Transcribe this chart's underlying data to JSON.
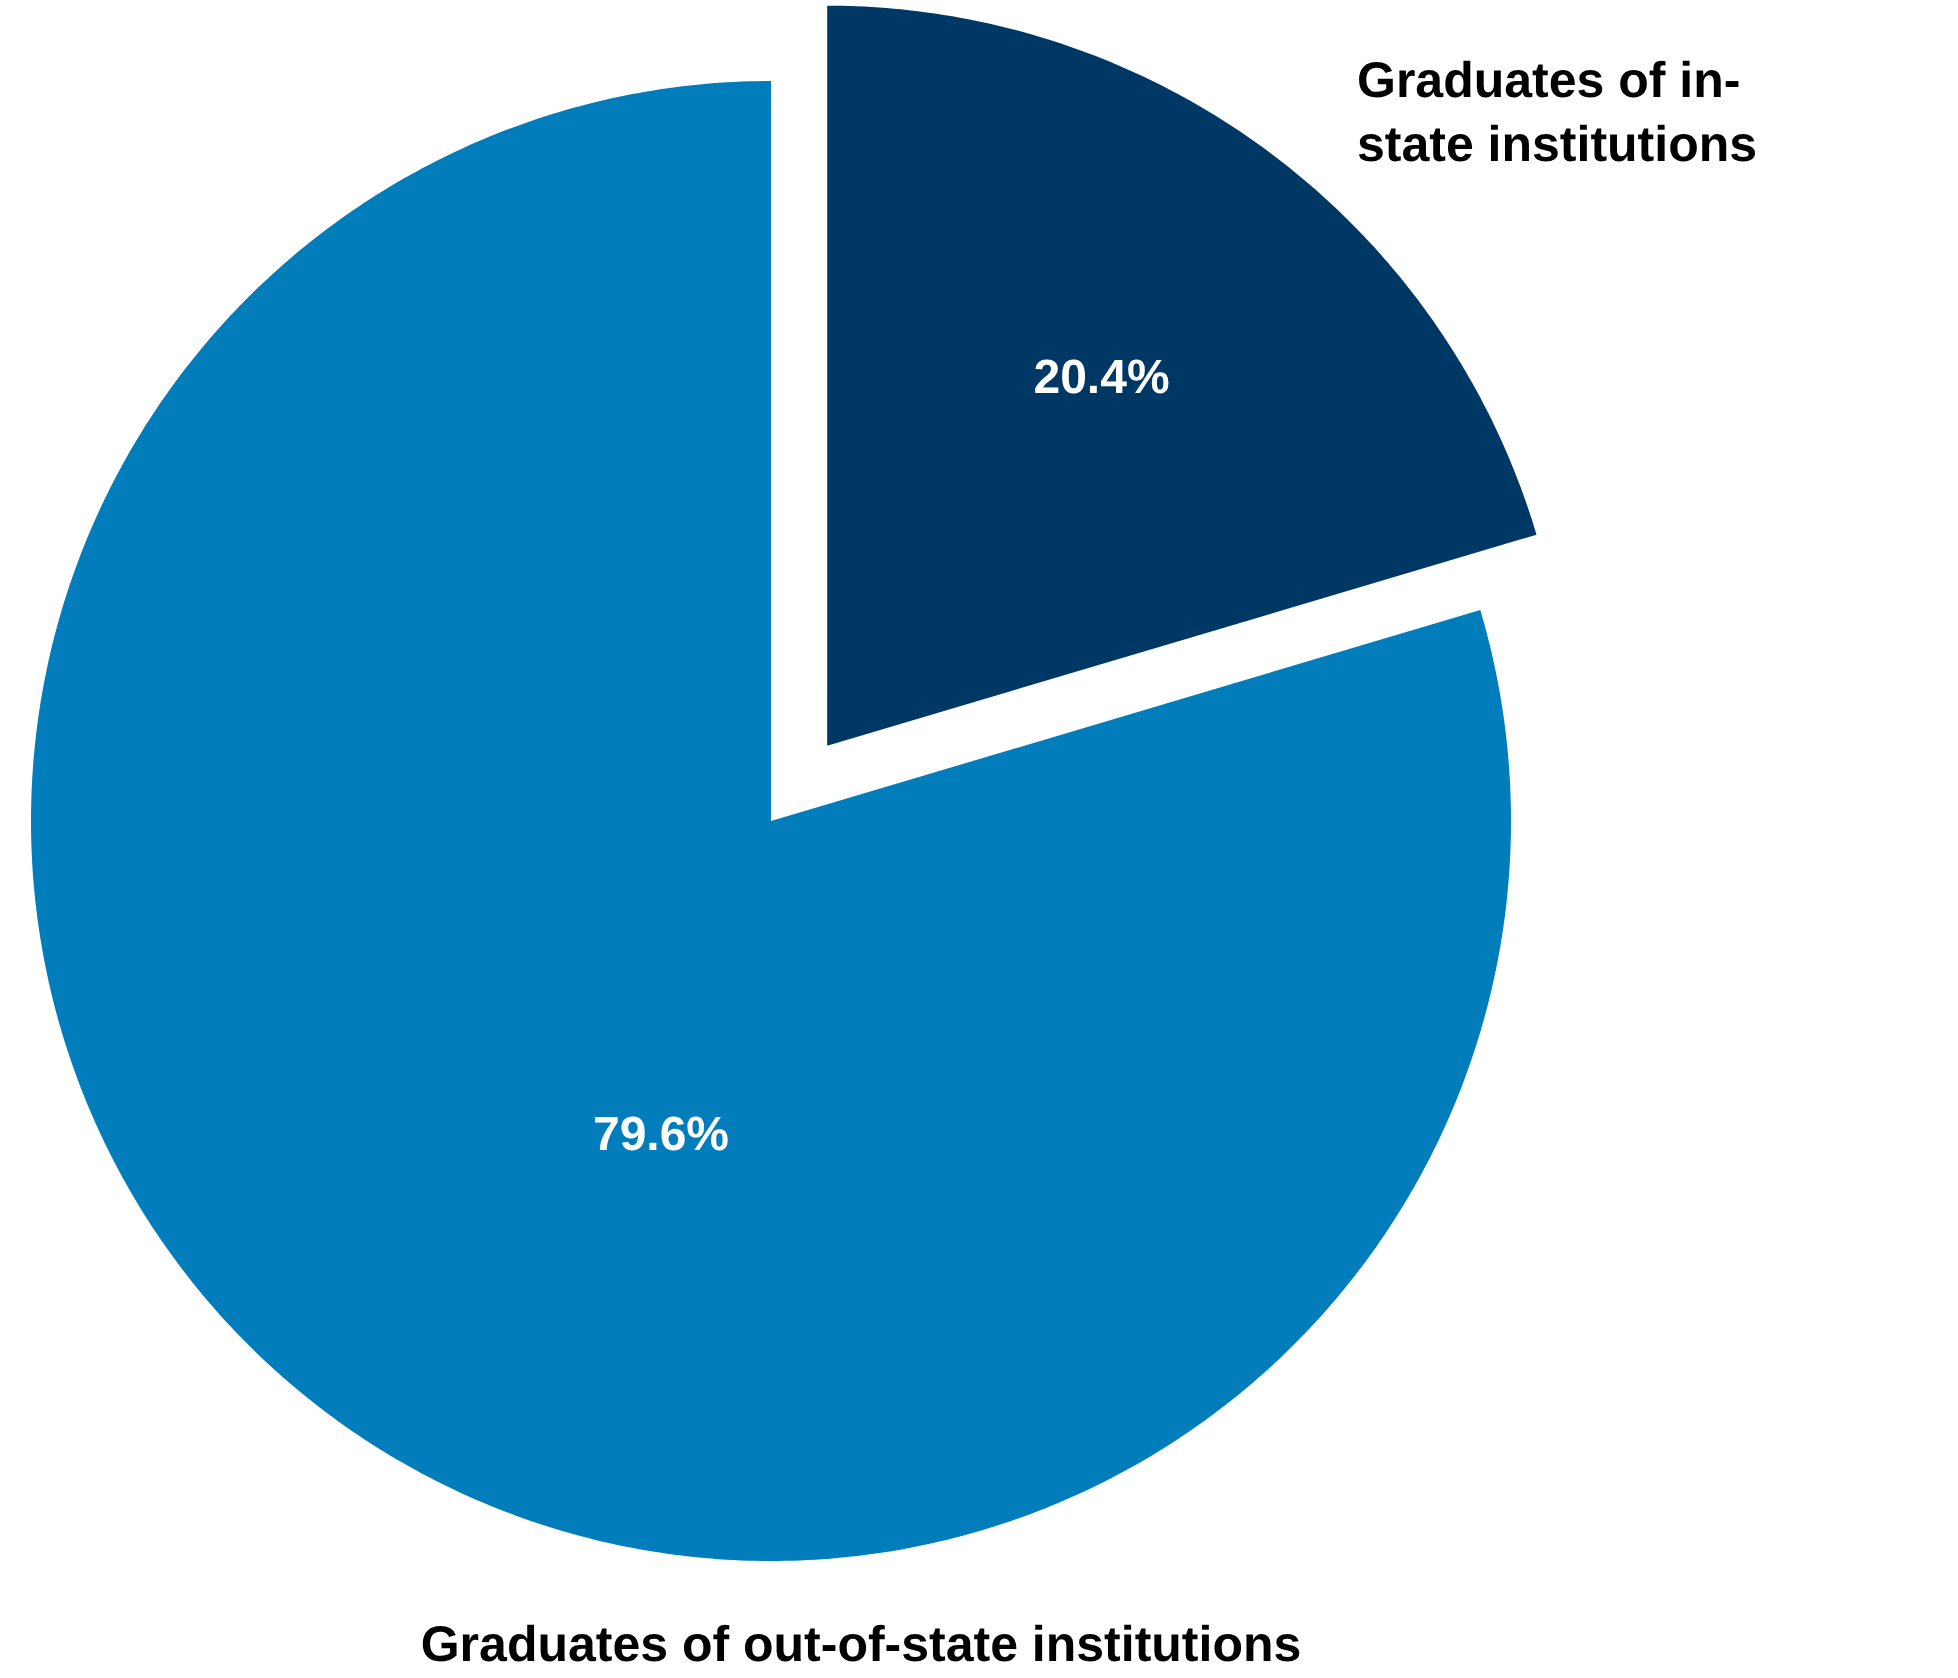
{
  "chart_data": {
    "type": "pie",
    "categories": [
      "Graduates of in-\nstate institutions",
      "Graduates of out-of-state institutions"
    ],
    "values": [
      20.4,
      79.6
    ],
    "colors": [
      "#003865",
      "#007dba"
    ],
    "value_labels": [
      "20.4%",
      "79.6%"
    ]
  }
}
